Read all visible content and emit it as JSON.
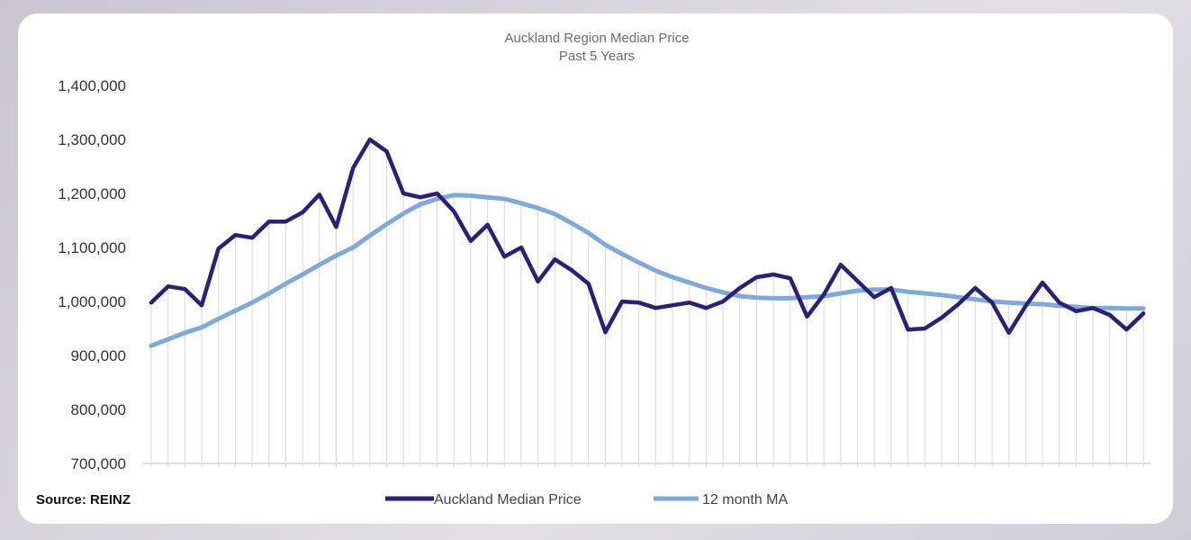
{
  "chart_data": {
    "type": "line",
    "title": "Auckland Region Median Price",
    "subtitle": "Past 5 Years",
    "xlabel": "",
    "ylabel": "",
    "ylim": [
      700000,
      1400000
    ],
    "yticks": [
      "1,400,000",
      "1,300,000",
      "1,200,000",
      "1,100,000",
      "1,000,000",
      "900,000",
      "800,000",
      "700,000"
    ],
    "ytick_values": [
      1400000,
      1300000,
      1200000,
      1100000,
      1000000,
      900000,
      800000,
      700000
    ],
    "grid": "vertical",
    "legend_position": "bottom",
    "source": "Source: REINZ",
    "series": [
      {
        "name": "Auckland Median Price",
        "color": "#2a1f7a",
        "values": [
          998000,
          1028000,
          1023000,
          993000,
          1098000,
          1123000,
          1118000,
          1148000,
          1148000,
          1165000,
          1198000,
          1138000,
          1247000,
          1300000,
          1278000,
          1200000,
          1193000,
          1200000,
          1167000,
          1112000,
          1142000,
          1083000,
          1100000,
          1037000,
          1078000,
          1058000,
          1033000,
          943000,
          1000000,
          998000,
          988000,
          993000,
          998000,
          988000,
          1000000,
          1025000,
          1045000,
          1050000,
          1043000,
          972000,
          1013000,
          1068000,
          1038000,
          1008000,
          1025000,
          948000,
          950000,
          970000,
          995000,
          1025000,
          998000,
          942000,
          992000,
          1035000,
          998000,
          982000,
          988000,
          975000,
          948000,
          978000
        ]
      },
      {
        "name": "12 month MA",
        "color": "#7ea9dc",
        "values": [
          918000,
          930000,
          942000,
          952000,
          968000,
          983000,
          998000,
          1015000,
          1033000,
          1050000,
          1068000,
          1085000,
          1100000,
          1122000,
          1143000,
          1163000,
          1180000,
          1190000,
          1197000,
          1196000,
          1193000,
          1190000,
          1182000,
          1173000,
          1162000,
          1145000,
          1127000,
          1105000,
          1088000,
          1072000,
          1057000,
          1045000,
          1035000,
          1025000,
          1017000,
          1010000,
          1007000,
          1006000,
          1006000,
          1008000,
          1010000,
          1015000,
          1020000,
          1022000,
          1022000,
          1018000,
          1015000,
          1012000,
          1008000,
          1004000,
          1000000,
          998000,
          996000,
          995000,
          992000,
          990000,
          988000,
          988000,
          987000,
          987000
        ]
      }
    ]
  }
}
